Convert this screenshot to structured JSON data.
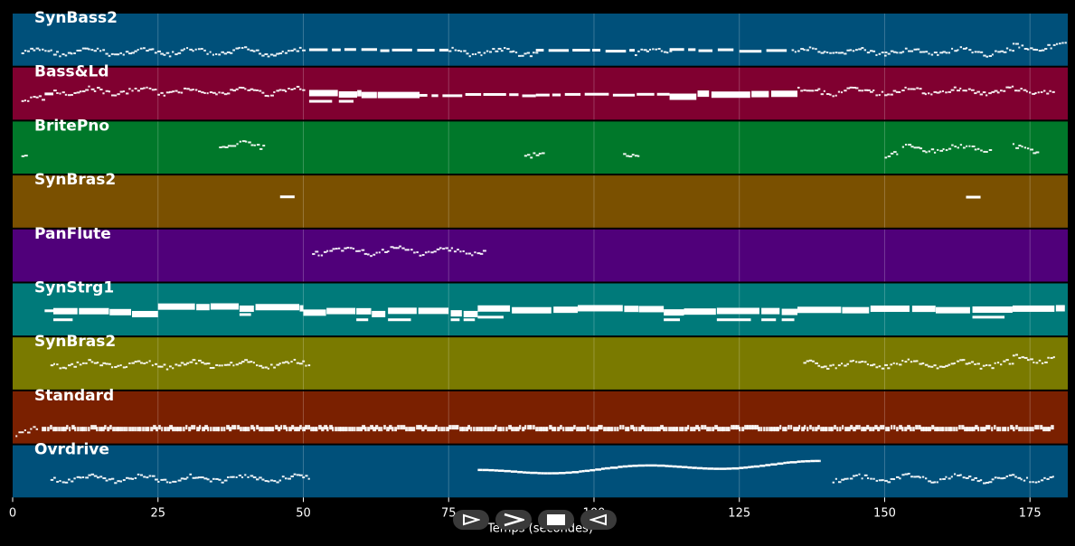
{
  "chart_data": {
    "type": "piano-roll",
    "xlabel": "Temps (secondes)",
    "xlim": [
      0,
      181.5
    ],
    "xticks": [
      0,
      25,
      50,
      75,
      100,
      125,
      150,
      175
    ],
    "grid": true,
    "tracks": [
      {
        "name": "SynBass2",
        "color": "#00507a",
        "notes": [
          {
            "start": 1.5,
            "end": 50,
            "pitch": 0.72,
            "style": "dots"
          },
          {
            "start": 51,
            "end": 75,
            "pitch": 0.68,
            "style": "bars"
          },
          {
            "start": 75,
            "end": 90,
            "pitch": 0.72,
            "style": "dots"
          },
          {
            "start": 90,
            "end": 107,
            "pitch": 0.68,
            "style": "bars"
          },
          {
            "start": 107,
            "end": 113,
            "pitch": 0.72,
            "style": "dots"
          },
          {
            "start": 113,
            "end": 124,
            "pitch": 0.68,
            "style": "bars"
          },
          {
            "start": 125,
            "end": 134,
            "pitch": 0.68,
            "style": "bars"
          },
          {
            "start": 134,
            "end": 150,
            "pitch": 0.72,
            "style": "dots"
          },
          {
            "start": 150,
            "end": 172,
            "pitch": 0.72,
            "style": "dots"
          },
          {
            "start": 172,
            "end": 181,
            "pitch": 0.62,
            "style": "dots"
          }
        ]
      },
      {
        "name": "Bass&Ld",
        "color": "#800030",
        "notes": [
          {
            "start": 1.5,
            "end": 5,
            "pitch": 0.62,
            "style": "dots"
          },
          {
            "start": 5.5,
            "end": 7,
            "pitch": 0.48,
            "style": "bars"
          },
          {
            "start": 7,
            "end": 50,
            "pitch": 0.44,
            "style": "dots"
          },
          {
            "start": 51,
            "end": 60,
            "pitch": 0.5,
            "style": "thick"
          },
          {
            "start": 60,
            "end": 70,
            "pitch": 0.52,
            "style": "thick"
          },
          {
            "start": 70,
            "end": 90,
            "pitch": 0.5,
            "style": "bars"
          },
          {
            "start": 90,
            "end": 113,
            "pitch": 0.5,
            "style": "bars"
          },
          {
            "start": 113,
            "end": 135,
            "pitch": 0.52,
            "style": "thick"
          },
          {
            "start": 135,
            "end": 179,
            "pitch": 0.44,
            "style": "dots"
          }
        ]
      },
      {
        "name": "BritePno",
        "color": "#00782a",
        "notes": [
          {
            "start": 1.5,
            "end": 2,
            "pitch": 0.6,
            "style": "dots"
          },
          {
            "start": 35.5,
            "end": 43,
            "pitch": 0.45,
            "style": "dots"
          },
          {
            "start": 88,
            "end": 91,
            "pitch": 0.6,
            "style": "dots"
          },
          {
            "start": 105,
            "end": 107.5,
            "pitch": 0.6,
            "style": "dots"
          },
          {
            "start": 150,
            "end": 152,
            "pitch": 0.6,
            "style": "dots"
          },
          {
            "start": 153,
            "end": 168,
            "pitch": 0.5,
            "style": "dots"
          },
          {
            "start": 172,
            "end": 176,
            "pitch": 0.5,
            "style": "dots"
          }
        ]
      },
      {
        "name": "SynBras2",
        "color": "#7a5000",
        "notes": [
          {
            "start": 46,
            "end": 48.5,
            "pitch": 0.4,
            "style": "bars"
          },
          {
            "start": 164,
            "end": 166.5,
            "pitch": 0.4,
            "style": "bars"
          }
        ]
      },
      {
        "name": "PanFlute",
        "color": "#50007a",
        "notes": [
          {
            "start": 51.5,
            "end": 81,
            "pitch": 0.4,
            "style": "dots"
          }
        ]
      },
      {
        "name": "SynStrg1",
        "color": "#007a7a",
        "notes": [
          {
            "start": 5.5,
            "end": 7,
            "pitch": 0.5,
            "style": "bars"
          },
          {
            "start": 7,
            "end": 25,
            "pitch": 0.55,
            "style": "thick"
          },
          {
            "start": 25,
            "end": 50,
            "pitch": 0.45,
            "style": "thick"
          },
          {
            "start": 50,
            "end": 80,
            "pitch": 0.55,
            "style": "thick"
          },
          {
            "start": 80,
            "end": 112,
            "pitch": 0.5,
            "style": "thick"
          },
          {
            "start": 112,
            "end": 135,
            "pitch": 0.55,
            "style": "thick"
          },
          {
            "start": 135,
            "end": 172,
            "pitch": 0.5,
            "style": "thick"
          },
          {
            "start": 172,
            "end": 181,
            "pitch": 0.45,
            "style": "thick"
          }
        ]
      },
      {
        "name": "SynBras2",
        "color": "#7a7a00",
        "notes": [
          {
            "start": 6.5,
            "end": 51,
            "pitch": 0.5,
            "style": "dots"
          },
          {
            "start": 136,
            "end": 172,
            "pitch": 0.5,
            "style": "dots"
          },
          {
            "start": 172,
            "end": 179,
            "pitch": 0.4,
            "style": "dots"
          }
        ]
      },
      {
        "name": "Standard",
        "color": "#7a2000",
        "notes": [
          {
            "start": 0.5,
            "end": 4,
            "pitch": 0.75,
            "style": "dots"
          },
          {
            "start": 5,
            "end": 179,
            "pitch": 0.68,
            "style": "drums"
          }
        ]
      },
      {
        "name": "Ovrdrive",
        "color": "#00507a",
        "notes": [
          {
            "start": 6.5,
            "end": 51,
            "pitch": 0.62,
            "style": "dots"
          },
          {
            "start": 80,
            "end": 139,
            "pitch": 0.5,
            "style": "line"
          },
          {
            "start": 141,
            "end": 179,
            "pitch": 0.62,
            "style": "dots"
          }
        ]
      }
    ]
  },
  "controls": {
    "play": "play-icon",
    "forward": "fast-forward-icon",
    "stop": "stop-icon",
    "rewind": "rewind-icon"
  }
}
